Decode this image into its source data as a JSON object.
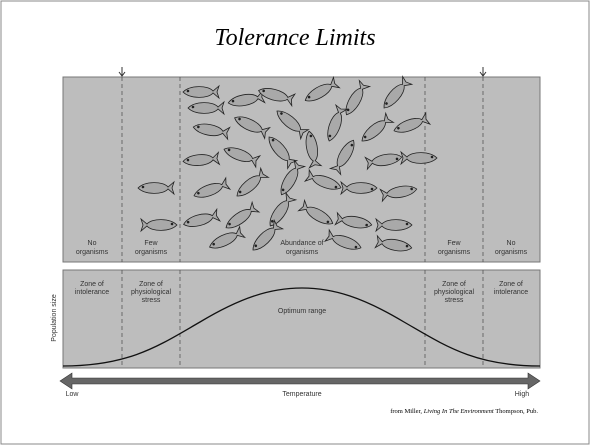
{
  "title": "Tolerance Limits",
  "top_panel": {
    "zones": [
      [
        "No",
        "organisms"
      ],
      [
        "Few",
        "organisms"
      ],
      [
        "Abundance of",
        "organisms"
      ],
      [
        "Few",
        "organisms"
      ],
      [
        "No",
        "organisms"
      ]
    ]
  },
  "bottom_panel": {
    "y_label": "Population size",
    "zones": [
      [
        "Zone of",
        "intolerance"
      ],
      [
        "Zone of",
        "physiological",
        "stress"
      ],
      [
        "Optimum range"
      ],
      [
        "Zone of",
        "physiological",
        "stress"
      ],
      [
        "Zone of",
        "intolerance"
      ]
    ]
  },
  "axis": {
    "low": "Low",
    "label": "Temperature",
    "high": "High"
  },
  "credit": {
    "prefix": "from Miller, ",
    "book": "Living In The Environment",
    "suffix": " Thompson, Pub."
  }
}
